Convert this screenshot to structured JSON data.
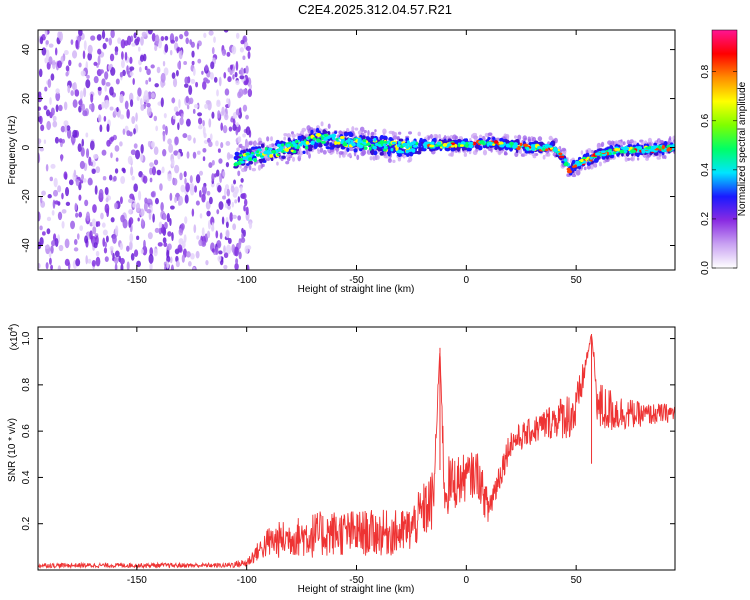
{
  "title": "C2E4.2025.312.04.57.R21",
  "chart_data": [
    {
      "type": "heatmap",
      "xlabel": "Height of straight line (km)",
      "ylabel": "Frequency (Hz)",
      "xlim": [
        -195,
        95
      ],
      "ylim": [
        -50,
        48
      ],
      "xticks": [
        -150,
        -100,
        -50,
        0,
        50
      ],
      "xtick_labels": [
        "-150",
        "-100",
        "-50",
        "0",
        "50"
      ],
      "yticks": [
        -40,
        -20,
        0,
        20,
        40
      ],
      "ytick_labels": [
        "-40",
        "-20",
        "0",
        "20",
        "40"
      ],
      "noise_region_x": [
        -195,
        -100
      ],
      "signal_ridge": {
        "x": [
          -105,
          -95,
          -85,
          -75,
          -68,
          -60,
          -50,
          -40,
          -30,
          -20,
          -10,
          0,
          10,
          20,
          30,
          40,
          44,
          47,
          50,
          55,
          60,
          70,
          80,
          95
        ],
        "freq": [
          -5,
          -3,
          -1,
          1,
          4,
          3,
          2,
          1,
          0,
          1,
          1,
          1,
          2,
          1,
          0,
          0,
          -4,
          -9,
          -7,
          -5,
          -3,
          -1,
          -1,
          0
        ]
      },
      "colorbar": {
        "label": "Normalized spectral amplitude",
        "range": [
          0,
          0.97
        ],
        "ticks": [
          0.0,
          0.2,
          0.4,
          0.6,
          0.8
        ],
        "tick_labels": [
          "0.0",
          "0.2",
          "0.4",
          "0.6",
          "0.8"
        ],
        "colors": [
          "#ffffff",
          "#c9a2f2",
          "#8a2be2",
          "#1a1aff",
          "#00e5ff",
          "#00ff66",
          "#7fff00",
          "#ffff00",
          "#ff8c00",
          "#ff0000",
          "#ff1493"
        ]
      }
    },
    {
      "type": "line",
      "xlabel": "Height of straight line (km)",
      "ylabel": "SNR (10 * v/v)",
      "y_multiplier_label": "(x10",
      "y_multiplier_exponent": "4",
      "xlim": [
        -195,
        95
      ],
      "ylim": [
        0,
        1.05
      ],
      "xticks": [
        -150,
        -100,
        -50,
        0,
        50
      ],
      "xtick_labels": [
        "-150",
        "-100",
        "-50",
        "0",
        "50"
      ],
      "yticks": [
        0.2,
        0.4,
        0.6,
        0.8,
        1.0
      ],
      "ytick_labels": [
        "0.2",
        "0.4",
        "0.6",
        "0.8",
        "1.0"
      ],
      "color": "#ee3333",
      "series": [
        {
          "name": "SNR",
          "x": [
            -195,
            -150,
            -110,
            -100,
            -95,
            -90,
            -85,
            -80,
            -70,
            -60,
            -50,
            -40,
            -30,
            -25,
            -20,
            -15,
            -12,
            -10,
            -5,
            0,
            5,
            10,
            20,
            30,
            40,
            50,
            57,
            60,
            70,
            80,
            95
          ],
          "values": [
            0.02,
            0.02,
            0.02,
            0.03,
            0.08,
            0.12,
            0.13,
            0.14,
            0.15,
            0.16,
            0.16,
            0.16,
            0.16,
            0.18,
            0.25,
            0.3,
            0.96,
            0.35,
            0.38,
            0.4,
            0.42,
            0.26,
            0.55,
            0.6,
            0.65,
            0.68,
            1.02,
            0.7,
            0.68,
            0.67,
            0.68
          ],
          "spread": [
            0.01,
            0.01,
            0.01,
            0.02,
            0.04,
            0.07,
            0.08,
            0.08,
            0.1,
            0.1,
            0.1,
            0.1,
            0.1,
            0.1,
            0.12,
            0.14,
            0.0,
            0.14,
            0.12,
            0.1,
            0.1,
            0.08,
            0.06,
            0.06,
            0.08,
            0.12,
            0.0,
            0.12,
            0.08,
            0.05,
            0.04
          ]
        }
      ]
    }
  ]
}
